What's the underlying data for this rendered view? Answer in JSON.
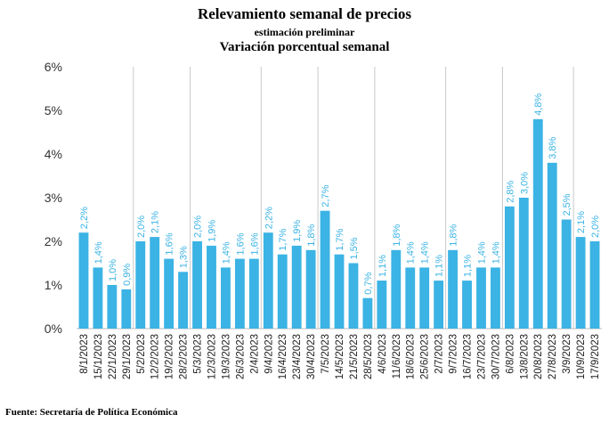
{
  "chart_data": {
    "type": "bar",
    "title": "Relevamiento semanal de precios",
    "subtitle": "estimación preliminar",
    "subtitle2": "Variación porcentual semanal",
    "xlabel": "",
    "ylabel": "",
    "ylim": [
      0,
      6
    ],
    "yticks": [
      "0%",
      "1%",
      "2%",
      "3%",
      "4%",
      "5%",
      "6%"
    ],
    "categories": [
      "8/1/2023",
      "15/1/2023",
      "22/1/2023",
      "29/1/2023",
      "5/2/2023",
      "12/2/2023",
      "19/2/2023",
      "28/2/2023",
      "5/3/2023",
      "12/3/2023",
      "19/3/2023",
      "26/3/2023",
      "2/4/2023",
      "9/4/2023",
      "16/4/2023",
      "23/4/2023",
      "30/4/2023",
      "7/5/2023",
      "14/5/2023",
      "21/5/2023",
      "28/5/2023",
      "4/6/2023",
      "11/6/2023",
      "18/6/2023",
      "25/6/2023",
      "2/7/2023",
      "9/7/2023",
      "16/7/2023",
      "23/7/2023",
      "30/7/2023",
      "6/8/2023",
      "13/8/2023",
      "20/8/2023",
      "27/8/2023",
      "3/9/2023",
      "10/9/2023",
      "17/9/2023"
    ],
    "values": [
      2.2,
      1.4,
      1.0,
      0.9,
      2.0,
      2.1,
      1.6,
      1.3,
      2.0,
      1.9,
      1.4,
      1.6,
      1.6,
      2.2,
      1.7,
      1.9,
      1.8,
      2.7,
      1.7,
      1.5,
      0.7,
      1.1,
      1.8,
      1.4,
      1.4,
      1.1,
      1.8,
      1.1,
      1.4,
      1.4,
      2.8,
      3.0,
      4.8,
      3.8,
      2.5,
      2.1,
      2.0
    ],
    "data_labels": [
      "2,2%",
      "1,4%",
      "1,0%",
      "0,9%",
      "2,0%",
      "2,1%",
      "1,6%",
      "1,3%",
      "2,0%",
      "1,9%",
      "1,4%",
      "1,6%",
      "1,6%",
      "2,2%",
      "1,7%",
      "1,9%",
      "1,8%",
      "2,7%",
      "1,7%",
      "1,5%",
      "0,7%",
      "1,1%",
      "1,8%",
      "1,4%",
      "1,4%",
      "1,1%",
      "1,8%",
      "1,1%",
      "1,4%",
      "1,4%",
      "2,8%",
      "3,0%",
      "4,8%",
      "3,8%",
      "2,5%",
      "2,1%",
      "2,0%"
    ],
    "separators_after": [
      3,
      7,
      12,
      16,
      20,
      25,
      29,
      34
    ],
    "grid": false,
    "legend": "none",
    "bar_color": "#3bb3e4",
    "label_color": "#3bb3e4"
  },
  "source": "Fuente: Secretaría de Política Económica"
}
